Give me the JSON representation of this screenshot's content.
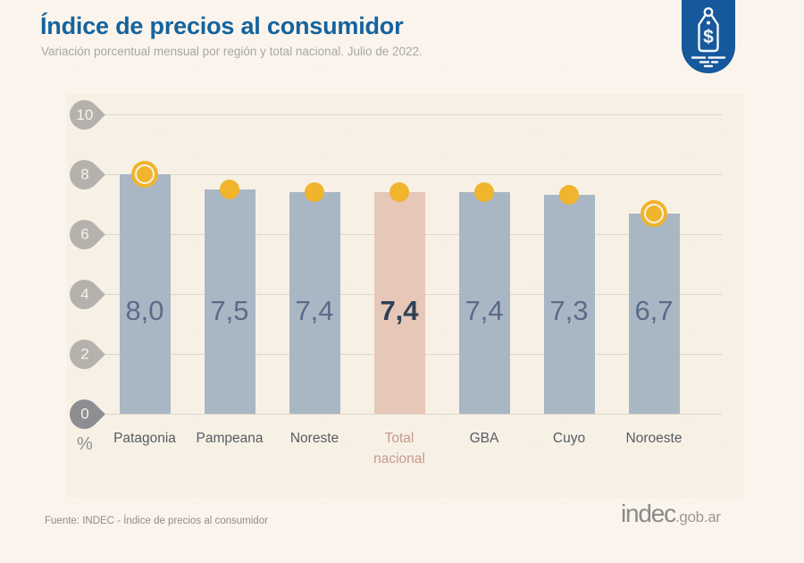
{
  "header": {
    "title": "Índice de precios al consumidor",
    "subtitle": "Variación porcentual mensual por región y total nacional. Julio de 2022.",
    "emblem_icon": "price-tag-icon"
  },
  "chart_data": {
    "type": "bar",
    "title": "Índice de precios al consumidor",
    "subtitle": "Variación porcentual mensual por región y total nacional. Julio de 2022.",
    "categories": [
      "Patagonia",
      "Pampeana",
      "Noreste",
      "Total nacional",
      "GBA",
      "Cuyo",
      "Noroeste"
    ],
    "values": [
      8.0,
      7.5,
      7.4,
      7.4,
      7.4,
      7.3,
      6.7
    ],
    "display_values": [
      "8,0",
      "7,5",
      "7,4",
      "7,4",
      "7,4",
      "7,3",
      "6,7"
    ],
    "highlight_index": 3,
    "markers": [
      "ring",
      "dot",
      "dot",
      "dot",
      "dot",
      "dot",
      "ring"
    ],
    "unit_label": "%",
    "xlabel": "",
    "ylabel": "%",
    "ylim": [
      0,
      10
    ],
    "yticks": [
      0,
      2,
      4,
      6,
      8,
      10
    ],
    "grid": true,
    "legend": false,
    "colors": {
      "bar": "#a9b7c5",
      "highlight_bar": "#e7c7b7",
      "marker": "#f0b42d",
      "title": "#14639e",
      "highlight_label": "#c69a8c",
      "emblem": "#15599c"
    }
  },
  "footer": {
    "source": "Fuente: INDEC - Índice de precios al consumidor",
    "logo_main": "indec",
    "logo_suffix": ".gob.ar"
  }
}
